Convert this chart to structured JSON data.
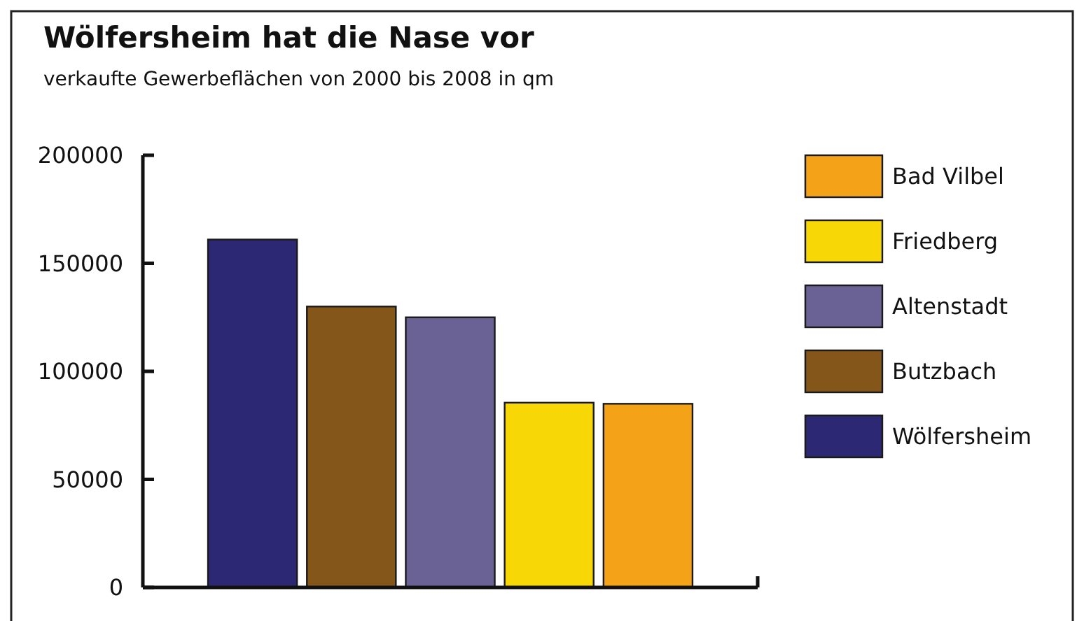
{
  "chart_data": {
    "type": "bar",
    "title": "Wölfersheim hat die Nase vor",
    "subtitle": "verkaufte Gewerbeflächen von 2000 bis 2008 in  qm",
    "categories": [
      null,
      null,
      null,
      null,
      null
    ],
    "series": [
      {
        "name": "Wölfersheim",
        "color": "#2d2874",
        "values": [
          161000,
          null,
          null,
          null,
          null
        ]
      },
      {
        "name": "Butzbach",
        "color": "#85561a",
        "values": [
          null,
          130000,
          null,
          null,
          null
        ]
      },
      {
        "name": "Altenstadt",
        "color": "#6a6194",
        "values": [
          null,
          null,
          125000,
          null,
          null
        ]
      },
      {
        "name": "Friedberg",
        "color": "#f8d706",
        "values": [
          null,
          null,
          null,
          85500,
          null
        ]
      },
      {
        "name": "Bad Vilbel",
        "color": "#f4a217",
        "values": [
          null,
          null,
          null,
          null,
          85000
        ]
      }
    ],
    "ylim": [
      0,
      200000
    ],
    "yticks": [
      0,
      50000,
      100000,
      150000,
      200000
    ],
    "legend": "right",
    "grid": false
  }
}
